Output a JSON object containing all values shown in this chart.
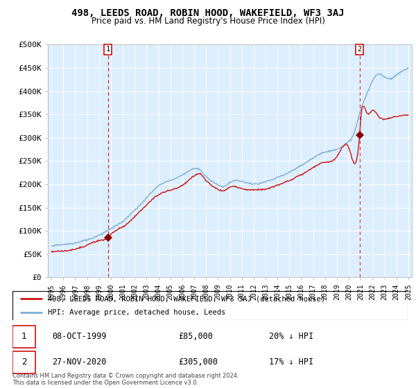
{
  "title": "498, LEEDS ROAD, ROBIN HOOD, WAKEFIELD, WF3 3AJ",
  "subtitle": "Price paid vs. HM Land Registry's House Price Index (HPI)",
  "legend_line1": "498, LEEDS ROAD, ROBIN HOOD, WAKEFIELD, WF3 3AJ (detached house)",
  "legend_line2": "HPI: Average price, detached house, Leeds",
  "sale1_date": "08-OCT-1999",
  "sale1_price": 85000,
  "sale1_label": "20% ↓ HPI",
  "sale2_date": "27-NOV-2020",
  "sale2_price": 305000,
  "sale2_label": "17% ↓ HPI",
  "footnote": "Contains HM Land Registry data © Crown copyright and database right 2024.\nThis data is licensed under the Open Government Licence v3.0.",
  "hpi_color": "#7ab0d4",
  "price_color": "#cc1111",
  "bg_color": "#ddeeff",
  "plot_bg_color": "#ddeeff",
  "sale_marker_color": "#880000",
  "vline_color": "#cc1111",
  "ylim": [
    0,
    500000
  ],
  "ytick_vals": [
    0,
    50000,
    100000,
    150000,
    200000,
    250000,
    300000,
    350000,
    400000,
    450000,
    500000
  ],
  "ytick_labels": [
    "£0",
    "£50K",
    "£100K",
    "£150K",
    "£200K",
    "£250K",
    "£300K",
    "£350K",
    "£400K",
    "£450K",
    "£500K"
  ],
  "xlim_start": 1994.7,
  "xlim_end": 2025.3,
  "sale1_x": 1999.75,
  "sale1_y": 85000,
  "sale2_x": 2020.9,
  "sale2_y": 305000,
  "hpi_anchor_x": [
    1995,
    1996,
    1997,
    1998,
    1999,
    2000,
    2001,
    2002,
    2003,
    2004,
    2005,
    2006,
    2007,
    2007.5,
    2008,
    2008.5,
    2009,
    2009.5,
    2010,
    2010.5,
    2011,
    2011.5,
    2012,
    2013,
    2014,
    2015,
    2016,
    2017,
    2017.5,
    2018,
    2018.5,
    2019,
    2019.5,
    2020,
    2020.5,
    2021,
    2021.5,
    2022,
    2022.5,
    2023,
    2023.5,
    2024,
    2024.5,
    2025
  ],
  "hpi_anchor_y": [
    68000,
    71000,
    75000,
    82000,
    92000,
    105000,
    120000,
    145000,
    172000,
    198000,
    210000,
    222000,
    235000,
    232000,
    218000,
    208000,
    200000,
    198000,
    205000,
    210000,
    208000,
    205000,
    203000,
    208000,
    218000,
    230000,
    245000,
    262000,
    270000,
    275000,
    278000,
    282000,
    288000,
    298000,
    320000,
    368000,
    400000,
    430000,
    445000,
    440000,
    435000,
    442000,
    450000,
    455000
  ],
  "red_anchor_x": [
    1995,
    1996,
    1997,
    1998,
    1999,
    1999.75,
    2000,
    2001,
    2002,
    2003,
    2004,
    2005,
    2006,
    2007,
    2007.5,
    2008,
    2008.5,
    2009,
    2009.5,
    2010,
    2011,
    2012,
    2013,
    2014,
    2015,
    2016,
    2017,
    2018,
    2019,
    2020,
    2020.9,
    2021,
    2021.5,
    2022,
    2022.5,
    2023,
    2023.5,
    2024,
    2024.5,
    2025
  ],
  "red_anchor_y": [
    55000,
    57000,
    60000,
    68000,
    78000,
    85000,
    92000,
    108000,
    130000,
    155000,
    178000,
    188000,
    198000,
    218000,
    222000,
    208000,
    195000,
    188000,
    185000,
    192000,
    190000,
    188000,
    190000,
    198000,
    208000,
    220000,
    235000,
    248000,
    260000,
    278000,
    305000,
    340000,
    355000,
    360000,
    348000,
    342000,
    345000,
    348000,
    350000,
    352000
  ]
}
